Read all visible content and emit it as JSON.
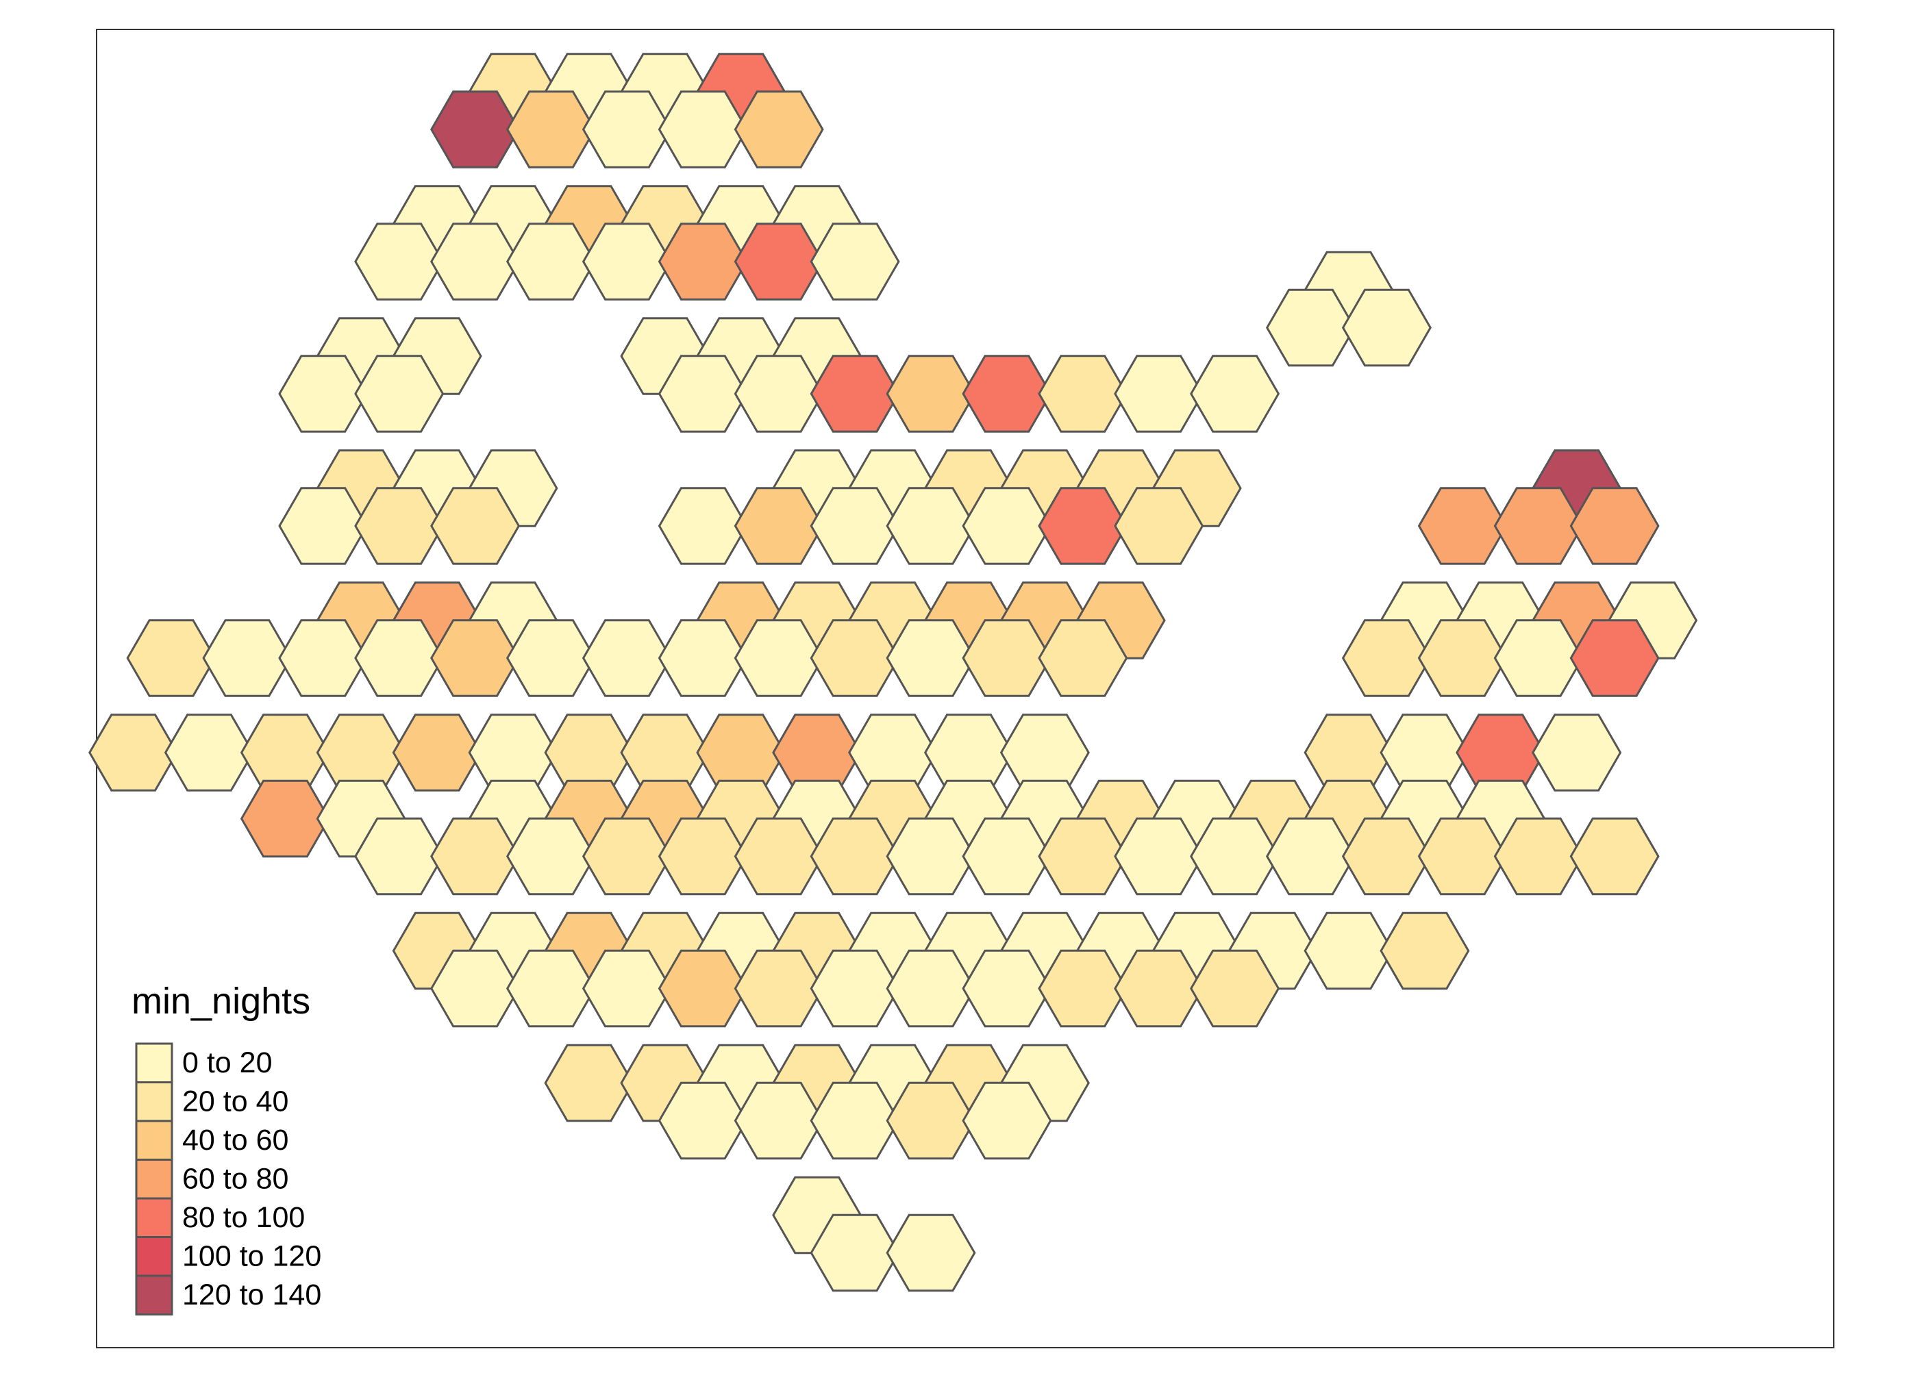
{
  "map": {
    "legend": {
      "title": "min_nights",
      "classes": [
        {
          "label": "0 to 20",
          "color": "#FFF8C3"
        },
        {
          "label": "20 to 40",
          "color": "#FDE7A3"
        },
        {
          "label": "40 to 60",
          "color": "#FCCA80"
        },
        {
          "label": "60 to 80",
          "color": "#FAA56E"
        },
        {
          "label": "80 to 100",
          "color": "#F67563"
        },
        {
          "label": "100 to 120",
          "color": "#E04B5A"
        },
        {
          "label": "120 to 140",
          "color": "#B74A5D"
        }
      ]
    },
    "hex_class_counts": [
      146,
      44,
      16,
      10,
      7,
      0,
      2
    ]
  }
}
